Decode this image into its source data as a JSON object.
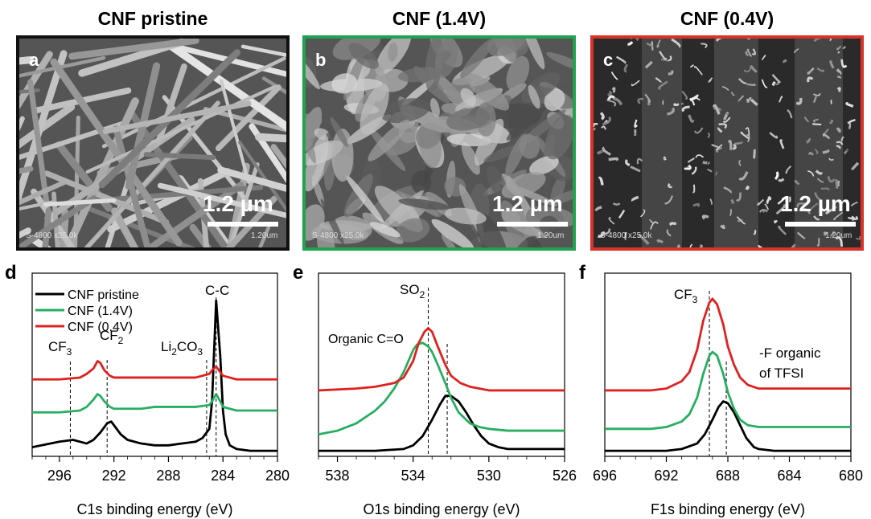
{
  "images": [
    {
      "title": "CNF pristine",
      "letter": "a",
      "border": "#111111",
      "scale": "1.2 µm",
      "caption_left": "S-4800 x25.0k",
      "caption_right": "1.20um"
    },
    {
      "title": "CNF (1.4V)",
      "letter": "b",
      "border": "#1fa351",
      "scale": "1.2 µm",
      "caption_left": "S-4800 x25.0k",
      "caption_right": "1.20um"
    },
    {
      "title": "CNF (0.4V)",
      "letter": "c",
      "border": "#d9322b",
      "scale": "1.2 µm",
      "caption_left": "S-4800 x25.0k",
      "caption_right": "1.20um"
    }
  ],
  "colors": {
    "pristine": "#000000",
    "v14": "#27ae60",
    "v04": "#e0201f"
  },
  "chart_data": [
    {
      "type": "line",
      "panel": "d",
      "xlabel": "C1s binding energy (eV)",
      "xlim": [
        298,
        280
      ],
      "xticks": [
        296,
        292,
        288,
        284,
        280
      ],
      "series": [
        {
          "name": "CNF pristine",
          "color": "#000000",
          "x": [
            298,
            296,
            295,
            294,
            293.5,
            293,
            292.5,
            292.2,
            292,
            291.5,
            291,
            290,
            289,
            288,
            287,
            286,
            285.5,
            285,
            284.8,
            284.5,
            284.2,
            284,
            283.8,
            283.5,
            283,
            282,
            281,
            280
          ],
          "y": [
            0.05,
            0.08,
            0.09,
            0.07,
            0.09,
            0.13,
            0.18,
            0.19,
            0.17,
            0.12,
            0.09,
            0.07,
            0.06,
            0.06,
            0.07,
            0.08,
            0.1,
            0.15,
            0.3,
            0.85,
            0.55,
            0.25,
            0.12,
            0.06,
            0.04,
            0.03,
            0.03,
            0.03
          ]
        },
        {
          "name": "CNF (1.4V)",
          "color": "#27ae60",
          "x": [
            298,
            296,
            294.5,
            294,
            293.5,
            293.2,
            293,
            292.7,
            292.3,
            292,
            291,
            290,
            289,
            288,
            287,
            286,
            285,
            284.8,
            284.5,
            284.2,
            284,
            283.5,
            283,
            282,
            281,
            280
          ],
          "y": [
            0.24,
            0.24,
            0.25,
            0.27,
            0.31,
            0.34,
            0.33,
            0.3,
            0.27,
            0.26,
            0.26,
            0.26,
            0.27,
            0.27,
            0.27,
            0.27,
            0.28,
            0.3,
            0.34,
            0.3,
            0.27,
            0.26,
            0.25,
            0.25,
            0.25,
            0.25
          ]
        },
        {
          "name": "CNF (0.4V)",
          "color": "#e0201f",
          "x": [
            298,
            296,
            294.5,
            294,
            293.5,
            293.2,
            293,
            292.7,
            292.3,
            292,
            291,
            290,
            289,
            288,
            287,
            286,
            285,
            284.8,
            284.5,
            284.2,
            284,
            283.5,
            283,
            282,
            281,
            280
          ],
          "y": [
            0.42,
            0.42,
            0.43,
            0.45,
            0.48,
            0.52,
            0.51,
            0.47,
            0.44,
            0.43,
            0.43,
            0.43,
            0.43,
            0.43,
            0.43,
            0.43,
            0.45,
            0.47,
            0.49,
            0.46,
            0.44,
            0.43,
            0.42,
            0.42,
            0.42,
            0.42
          ]
        }
      ],
      "reference_lines": [
        {
          "x": 295.2,
          "label": "CF",
          "sub": "3"
        },
        {
          "x": 292.5,
          "label": "CF",
          "sub": "2"
        },
        {
          "x": 285.2,
          "label": "Li",
          "sub": "2",
          "label2": "CO",
          "sub2": "3"
        },
        {
          "x": 284.5,
          "label": "C-C",
          "sub": ""
        }
      ],
      "legend": [
        "CNF pristine",
        "CNF (1.4V)",
        "CNF (0.4V)"
      ],
      "legend_position": "top-left"
    },
    {
      "type": "line",
      "panel": "e",
      "xlabel": "O1s binding energy (eV)",
      "xlim": [
        539,
        526
      ],
      "xticks": [
        538,
        534,
        530,
        526
      ],
      "series": [
        {
          "name": "CNF pristine",
          "color": "#000000",
          "x": [
            539,
            536,
            534.5,
            534,
            533.5,
            533,
            532.6,
            532.3,
            532,
            531.6,
            531.2,
            530.8,
            530.4,
            530,
            529.5,
            529,
            528,
            527,
            526
          ],
          "y": [
            0.03,
            0.03,
            0.04,
            0.06,
            0.11,
            0.2,
            0.28,
            0.33,
            0.33,
            0.3,
            0.24,
            0.17,
            0.11,
            0.07,
            0.05,
            0.04,
            0.04,
            0.04,
            0.04
          ]
        },
        {
          "name": "CNF (1.4V)",
          "color": "#27ae60",
          "x": [
            539,
            538,
            537,
            536,
            535.5,
            535,
            534.5,
            534,
            533.8,
            533.5,
            533.2,
            533,
            532.7,
            532.3,
            532,
            531.6,
            531,
            530.5,
            530,
            529,
            528,
            527,
            526
          ],
          "y": [
            0.12,
            0.14,
            0.18,
            0.25,
            0.3,
            0.37,
            0.46,
            0.58,
            0.61,
            0.62,
            0.6,
            0.57,
            0.5,
            0.4,
            0.32,
            0.24,
            0.18,
            0.16,
            0.15,
            0.14,
            0.14,
            0.14,
            0.14
          ]
        },
        {
          "name": "CNF (0.4V)",
          "color": "#e0201f",
          "x": [
            539,
            537,
            536,
            535,
            534.5,
            534,
            533.7,
            533.4,
            533.2,
            533,
            532.7,
            532.3,
            532,
            531.5,
            531,
            530.5,
            530,
            529,
            528,
            527,
            526
          ],
          "y": [
            0.36,
            0.37,
            0.38,
            0.4,
            0.43,
            0.52,
            0.62,
            0.68,
            0.7,
            0.68,
            0.6,
            0.5,
            0.44,
            0.4,
            0.38,
            0.37,
            0.36,
            0.36,
            0.36,
            0.36,
            0.36
          ]
        }
      ],
      "reference_lines": [
        {
          "x": 533.2,
          "label": "SO",
          "sub": "2"
        },
        {
          "x": 532.2,
          "label": "",
          "sub": ""
        }
      ],
      "annotations": [
        {
          "text": "Organic C=O"
        }
      ]
    },
    {
      "type": "line",
      "panel": "f",
      "xlabel": "F1s binding energy (eV)",
      "xlim": [
        696,
        680
      ],
      "xticks": [
        696,
        692,
        688,
        684,
        680
      ],
      "series": [
        {
          "name": "CNF pristine",
          "color": "#000000",
          "x": [
            696,
            692,
            691,
            690,
            689.5,
            689,
            688.6,
            688.3,
            688,
            687.6,
            687.2,
            686.8,
            686.3,
            686,
            685,
            684,
            682,
            680
          ],
          "y": [
            0.03,
            0.03,
            0.04,
            0.07,
            0.12,
            0.2,
            0.27,
            0.3,
            0.29,
            0.24,
            0.17,
            0.1,
            0.05,
            0.04,
            0.03,
            0.03,
            0.03,
            0.03
          ]
        },
        {
          "name": "CNF (1.4V)",
          "color": "#27ae60",
          "x": [
            696,
            693,
            692,
            691,
            690.5,
            690,
            689.6,
            689.2,
            689,
            688.7,
            688.3,
            688,
            687.6,
            687.2,
            686.7,
            686,
            685,
            683,
            680
          ],
          "y": [
            0.15,
            0.15,
            0.16,
            0.19,
            0.23,
            0.32,
            0.45,
            0.55,
            0.57,
            0.55,
            0.45,
            0.35,
            0.26,
            0.2,
            0.17,
            0.16,
            0.16,
            0.16,
            0.16
          ]
        },
        {
          "name": "CNF (0.4V)",
          "color": "#e0201f",
          "x": [
            696,
            693,
            692,
            691,
            690.5,
            690,
            689.6,
            689.2,
            689,
            688.7,
            688.3,
            688,
            687.6,
            687.2,
            686.7,
            686,
            685,
            683,
            680
          ],
          "y": [
            0.36,
            0.36,
            0.37,
            0.41,
            0.46,
            0.58,
            0.74,
            0.84,
            0.86,
            0.83,
            0.72,
            0.6,
            0.5,
            0.43,
            0.39,
            0.37,
            0.37,
            0.37,
            0.37
          ]
        }
      ],
      "reference_lines": [
        {
          "x": 689.2,
          "label": "CF",
          "sub": "3"
        },
        {
          "x": 688.1,
          "label": "",
          "sub": ""
        }
      ],
      "annotations": [
        {
          "text": "-F organic"
        },
        {
          "text": "of TFSI"
        }
      ]
    }
  ]
}
